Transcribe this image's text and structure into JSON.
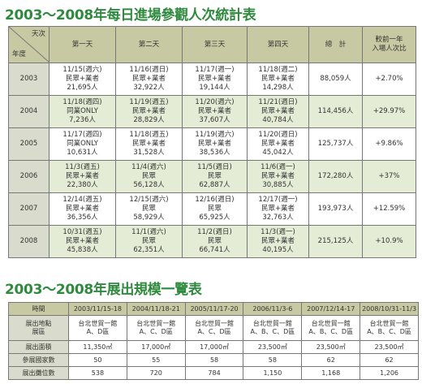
{
  "visits": {
    "title": "2003～2008年每日進場參觀人次統計表",
    "corner_top": "天次",
    "corner_bottom": "年度",
    "headers": [
      "第一天",
      "第二天",
      "第三天",
      "第四天",
      "總　計",
      "較前一年\n入場人次比"
    ],
    "rows": [
      {
        "year": "2003",
        "days": [
          "11/15(週六)\n民眾+業者\n21,695人",
          "11/16(週日)\n民眾+業者\n32,922人",
          "11/17(週一)\n民眾+業者\n19,144人",
          "11/18(週二)\n民眾+業者\n14,298人"
        ],
        "total": "88,059人",
        "ratio": "+2.70%"
      },
      {
        "year": "2004",
        "days": [
          "11/18(週四)\n同業ONLY\n7,236人",
          "11/19(週五)\n民眾+業者\n28,829人",
          "11/20(週六)\n民眾+業者\n37,607人",
          "11/21(週日)\n民眾+業者\n40,784人"
        ],
        "total": "114,456人",
        "ratio": "+29.97%"
      },
      {
        "year": "2005",
        "days": [
          "11/17(週四)\n同業ONLY\n10,631人",
          "11/18(週五)\n民眾+業者\n31,528人",
          "11/19(週六)\n民眾+業者\n38,536人",
          "11/20(週日)\n民眾+業者\n45,042人"
        ],
        "total": "125,737人",
        "ratio": "+9.86%"
      },
      {
        "year": "2006",
        "days": [
          "11/3(週五)\n民眾+業者\n22,380人",
          "11/4(週六)\n民眾\n56,128人",
          "11/5(週日)\n民眾\n62,887人",
          "11/6(週一)\n民眾+業者\n30,885人"
        ],
        "total": "172,280人",
        "ratio": "+37%"
      },
      {
        "year": "2007",
        "days": [
          "12/14(週五)\n民眾+業者\n36,356人",
          "12/15(週六)\n民眾\n58,929人",
          "12/16(週日)\n民眾\n65,925人",
          "12/17(週一)\n民眾+業者\n32,763人"
        ],
        "total": "193,973人",
        "ratio": "+12.59%"
      },
      {
        "year": "2008",
        "days": [
          "10/31(週五)\n民眾+業者\n45,838人",
          "11/1(週六)\n民眾\n62,351人",
          "11/2(週日)\n民眾\n66,741人",
          "11/3(週一)\n民眾+業者\n40,195人"
        ],
        "total": "215,125人",
        "ratio": "+10.9%"
      }
    ]
  },
  "scale": {
    "title": "2003～2008年展出規模一覽表",
    "rows": [
      [
        "時間",
        "2003/11/15-18",
        "2004/11/18-21",
        "2005/11/17-20",
        "2006/11/3-6",
        "2007/12/14-17",
        "2008/10/31-11/3"
      ],
      [
        "展出地點\n展區",
        "台北世貿一館\nA、D區",
        "台北世貿一館\nA、C、D區",
        "台北世貿一館\nA、C、D區",
        "台北世貿一館\nA、B、C、D區",
        "台北世貿一館\nA、B、C、D區",
        "台北世貿一館\nA、B、C、D區"
      ],
      [
        "展出面積",
        "11,350㎡",
        "17,000㎡",
        "17,000㎡",
        "23,500㎡",
        "23,500㎡",
        "23,500㎡"
      ],
      [
        "參展國家數",
        "50",
        "55",
        "58",
        "58",
        "62",
        "62"
      ],
      [
        "展出攤位數",
        "538",
        "720",
        "784",
        "1,150",
        "1,168",
        "1,206"
      ]
    ]
  }
}
